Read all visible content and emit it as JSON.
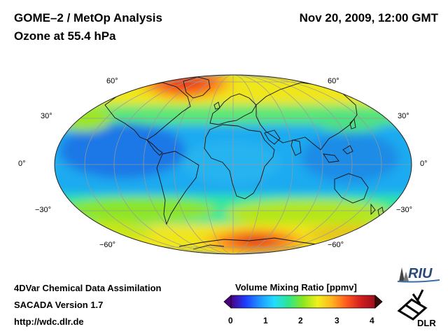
{
  "header": {
    "title_line1": "GOME–2 / MetOp Analysis",
    "title_line2": "Ozone at 55.4 hPa",
    "datetime": "Nov 20, 2009, 12:00 GMT"
  },
  "map": {
    "projection": "mollweide",
    "lat_labels": {
      "n60_left": "60°",
      "n30_left": "30°",
      "eq_left": "0°",
      "s30_left": "−30°",
      "s60_left": "−60°",
      "n60_right": "60°",
      "n30_right": "30°",
      "eq_right": "0°",
      "s30_right": "−30°",
      "s60_right": "−60°"
    },
    "field": "ozone volume mixing ratio",
    "colors": {
      "low": "#1e64e6",
      "mid": "#2ee6a0",
      "high": "#e61e1e",
      "grid": "#9a9a9a",
      "coast": "#111111"
    }
  },
  "footer": {
    "line1": "4DVar Chemical Data Assimilation",
    "line2": "SACADA Version 1.7",
    "line3": "http://wdc.dlr.de"
  },
  "colorbar": {
    "title": "Volume Mixing Ratio [ppmv]",
    "min": 0,
    "max": 4,
    "ticks": [
      "0",
      "1",
      "2",
      "3",
      "4"
    ],
    "stops": [
      "#4b0082",
      "#1e3cff",
      "#1e96ff",
      "#23dcff",
      "#2ee68c",
      "#8ce61e",
      "#f0f01e",
      "#ffb41e",
      "#ff5a1e",
      "#d21e1e",
      "#9b0f1e"
    ]
  },
  "logos": {
    "riu_text": "RIU",
    "dlr_text": "DLR"
  }
}
